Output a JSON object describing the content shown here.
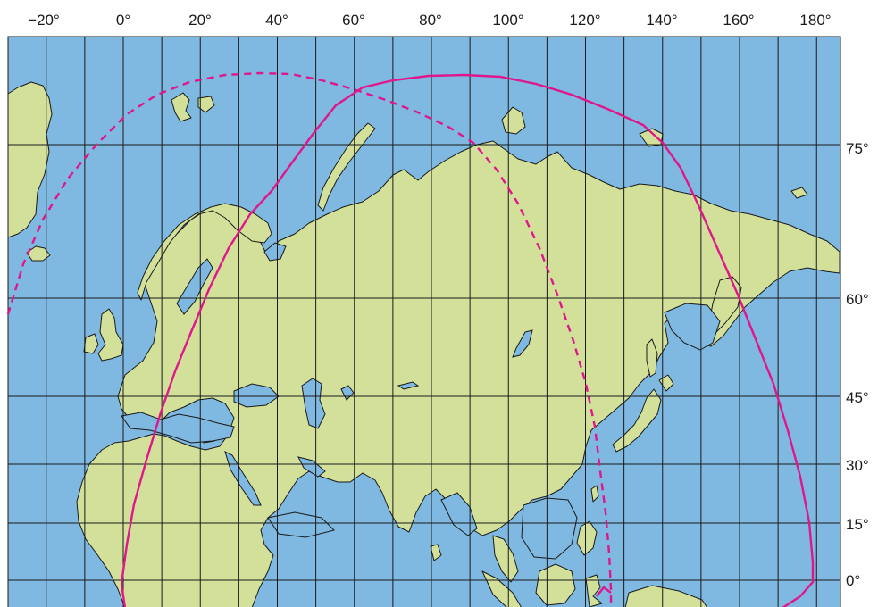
{
  "colors": {
    "ocean": "#7fb8e0",
    "land": "#d3e09a",
    "grid": "#1a1a1a",
    "coverage_line": "#e0168c"
  },
  "longitude_labels": [
    "−20°",
    "0°",
    "20°",
    "40°",
    "60°",
    "80°",
    "100°",
    "120°",
    "140°",
    "160°",
    "180°"
  ],
  "latitude_labels": [
    "75°",
    "60°",
    "45°",
    "30°",
    "15°",
    "0°"
  ],
  "longitudes_deg": [
    -20,
    0,
    20,
    40,
    60,
    80,
    100,
    120,
    140,
    160,
    180
  ],
  "latitudes_deg": [
    75,
    60,
    45,
    30,
    15,
    0
  ],
  "grid_spacing_deg": {
    "longitude": 10,
    "latitude": 15
  },
  "coverage_boundaries": [
    {
      "style": "solid",
      "apex_longitude_deg": 90,
      "extent_longitude_deg": [
        0,
        180
      ]
    },
    {
      "style": "dashed",
      "apex_longitude_deg": 40,
      "extent_longitude_deg": [
        -30,
        120
      ]
    }
  ]
}
